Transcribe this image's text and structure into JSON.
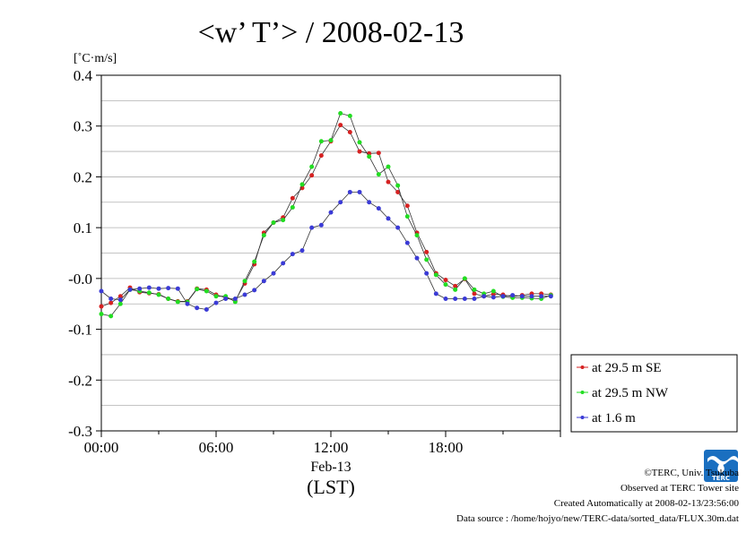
{
  "chart_data": {
    "type": "line",
    "title": "<w’ T’> / 2008-02-13",
    "ylabel": "[˚C·m/s]",
    "ylim": [
      -0.3,
      0.4
    ],
    "y_ticks": [
      0.4,
      0.3,
      0.2,
      0.1,
      -0.0,
      -0.1,
      -0.2,
      -0.3
    ],
    "y_tick_labels": [
      "0.4",
      "0.3",
      "0.2",
      "0.1",
      "-0.0",
      "-0.1",
      "-0.2",
      "-0.3"
    ],
    "xlim": [
      0,
      24
    ],
    "x_ticks": [
      0,
      6,
      12,
      18
    ],
    "x_tick_labels": [
      "00:00",
      "06:00",
      "12:00",
      "18:00"
    ],
    "x_date_label": "Feb-13",
    "xlabel": "(LST)",
    "grid": true,
    "legend_position": "bottom-right, outside plot",
    "x": [
      0.0,
      0.5,
      1.0,
      1.5,
      2.0,
      2.5,
      3.0,
      3.5,
      4.0,
      4.5,
      5.0,
      5.5,
      6.0,
      6.5,
      7.0,
      7.5,
      8.0,
      8.5,
      9.0,
      9.5,
      10.0,
      10.5,
      11.0,
      11.5,
      12.0,
      12.5,
      13.0,
      13.5,
      14.0,
      14.5,
      15.0,
      15.5,
      16.0,
      16.5,
      17.0,
      17.5,
      18.0,
      18.5,
      19.0,
      19.5,
      20.0,
      20.5,
      21.0,
      21.5,
      22.0,
      22.5,
      23.0,
      23.5
    ],
    "series": [
      {
        "name": "at 29.5 m SE",
        "color": "#d62222",
        "values": [
          -0.055,
          -0.048,
          -0.035,
          -0.018,
          -0.027,
          -0.029,
          -0.031,
          -0.04,
          -0.045,
          -0.045,
          -0.02,
          -0.022,
          -0.032,
          -0.038,
          -0.044,
          -0.01,
          0.028,
          0.09,
          0.11,
          0.12,
          0.158,
          0.178,
          0.203,
          0.242,
          0.27,
          0.302,
          0.288,
          0.25,
          0.246,
          0.247,
          0.19,
          0.17,
          0.143,
          0.09,
          0.052,
          0.01,
          -0.003,
          -0.015,
          -0.001,
          -0.03,
          -0.035,
          -0.031,
          -0.032,
          -0.036,
          -0.033,
          -0.03,
          -0.03,
          -0.032
        ]
      },
      {
        "name": "at 29.5 m NW",
        "color": "#22dd22",
        "values": [
          -0.07,
          -0.074,
          -0.05,
          -0.022,
          -0.025,
          -0.028,
          -0.032,
          -0.04,
          -0.046,
          -0.046,
          -0.021,
          -0.025,
          -0.035,
          -0.035,
          -0.046,
          -0.005,
          0.033,
          0.085,
          0.11,
          0.115,
          0.14,
          0.185,
          0.22,
          0.27,
          0.272,
          0.325,
          0.32,
          0.268,
          0.24,
          0.205,
          0.22,
          0.183,
          0.122,
          0.085,
          0.037,
          0.007,
          -0.012,
          -0.022,
          -0.0,
          -0.022,
          -0.03,
          -0.025,
          -0.036,
          -0.038,
          -0.038,
          -0.039,
          -0.04,
          -0.033
        ]
      },
      {
        "name": "at 1.6 m",
        "color": "#3b3bd6",
        "values": [
          -0.025,
          -0.04,
          -0.042,
          -0.022,
          -0.02,
          -0.018,
          -0.02,
          -0.019,
          -0.02,
          -0.05,
          -0.058,
          -0.061,
          -0.048,
          -0.04,
          -0.04,
          -0.032,
          -0.023,
          -0.005,
          0.01,
          0.03,
          0.048,
          0.055,
          0.1,
          0.105,
          0.13,
          0.15,
          0.17,
          0.17,
          0.15,
          0.138,
          0.118,
          0.1,
          0.07,
          0.04,
          0.01,
          -0.03,
          -0.04,
          -0.04,
          -0.04,
          -0.04,
          -0.035,
          -0.037,
          -0.035,
          -0.033,
          -0.035,
          -0.035,
          -0.035,
          -0.035
        ]
      }
    ]
  },
  "footer": {
    "copyright": "©TERC, Univ. Tsukuba",
    "observed": "Observed at TERC Tower site",
    "created": "Created Automatically at 2008-02-13/23:56:00",
    "source": "Data source : /home/hojyo/new/TERC-data/sorted_data/FLUX.30m.dat"
  },
  "logo": {
    "icon": "terc-logo-icon",
    "text": "TERC",
    "color": "#1a6fc0"
  }
}
